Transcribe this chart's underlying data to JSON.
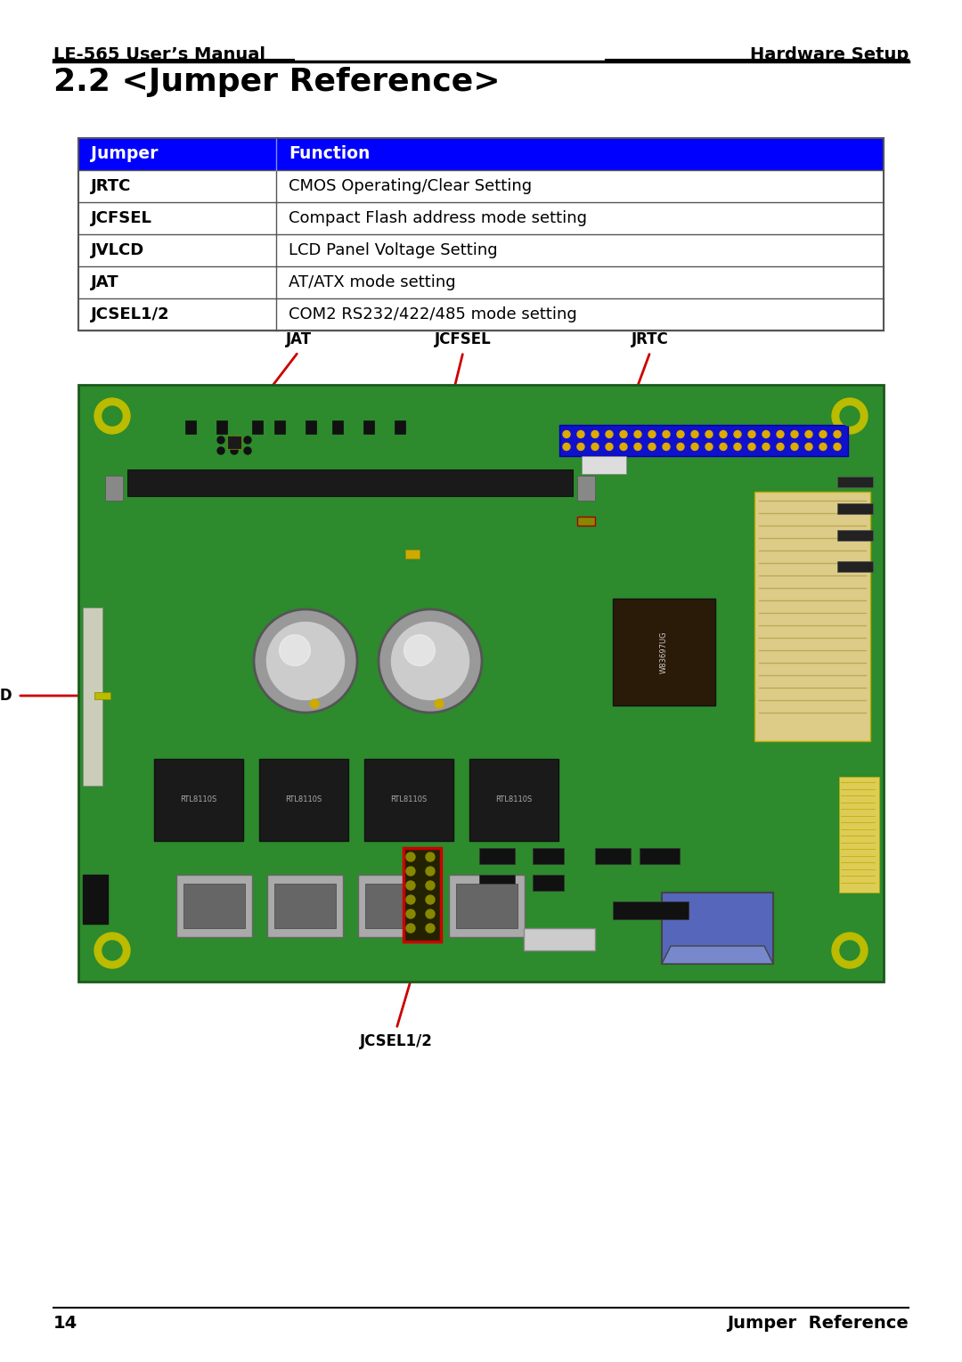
{
  "page_title_left": "LE-565 User’s Manual",
  "page_title_right": "Hardware Setup",
  "section_title": "2.2 <Jumper Reference>",
  "table_header": [
    "Jumper",
    "Function"
  ],
  "table_rows": [
    [
      "JRTC",
      "CMOS Operating/Clear Setting"
    ],
    [
      "JCFSEL",
      "Compact Flash address mode setting"
    ],
    [
      "JVLCD",
      "LCD Panel Voltage Setting"
    ],
    [
      "JAT",
      "AT/ATX mode setting"
    ],
    [
      "JCSEL1/2",
      "COM2 RS232/422/485 mode setting"
    ]
  ],
  "header_bg": "#0000FF",
  "header_fg": "#FFFFFF",
  "table_border": "#555555",
  "page_num_left": "14",
  "page_num_right": "Jumper  Reference",
  "annotation_color": "#CC0000",
  "board_green": "#2D8A2D",
  "board_dark_green": "#1A6A1A"
}
